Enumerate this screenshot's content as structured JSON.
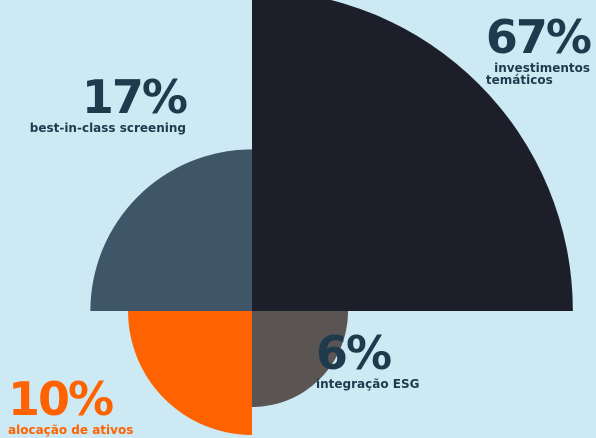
{
  "chart_data": {
    "type": "polar-area",
    "segments": [
      {
        "value_pct": 67,
        "value_label": "67%",
        "label": "investimentos temáticos",
        "label_lines": [
          "investimentos",
          "temáticos"
        ],
        "color": "#1c1f2a",
        "quadrant": "top-right"
      },
      {
        "value_pct": 17,
        "value_label": "17%",
        "label": "best-in-class screening",
        "label_lines": [
          "best-in-class screening"
        ],
        "color": "#3f5568",
        "quadrant": "top-left"
      },
      {
        "value_pct": 10,
        "value_label": "10%",
        "label": "alocação de ativos",
        "label_lines": [
          "alocação de ativos"
        ],
        "color": "#ff6200",
        "quadrant": "bottom-left"
      },
      {
        "value_pct": 6,
        "value_label": "6%",
        "label": "integração ESG",
        "label_lines": [
          "integração ESG"
        ],
        "color": "#5a5452",
        "quadrant": "bottom-right"
      }
    ],
    "label_colors": {
      "default": "#1f3a4d",
      "orange": "#ff6200"
    }
  }
}
